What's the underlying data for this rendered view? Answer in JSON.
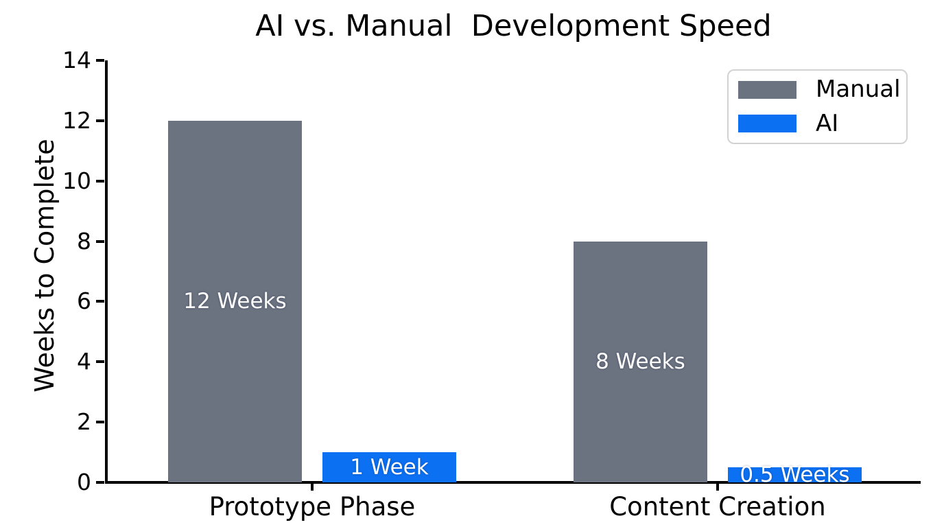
{
  "chart_data": {
    "type": "bar",
    "title": "AI vs. Manual  Development Speed",
    "ylabel": "Weeks to Complete",
    "xlabel": "",
    "categories": [
      "Prototype Phase",
      "Content Creation"
    ],
    "series": [
      {
        "name": "Manual",
        "color": "#6b7280",
        "values": [
          12,
          8
        ],
        "labels": [
          "12 Weeks",
          "8 Weeks"
        ]
      },
      {
        "name": "AI",
        "color": "#0c70f2",
        "values": [
          1,
          0.5
        ],
        "labels": [
          "1 Week",
          "0.5 Weeks"
        ]
      }
    ],
    "ylim": [
      0,
      14
    ],
    "yticks": [
      0,
      2,
      4,
      6,
      8,
      10,
      12,
      14
    ],
    "grid": false,
    "legend_position": "upper-right",
    "bar_label_color": "#ffffff",
    "axis_color": "#000000",
    "background": "#ffffff"
  }
}
